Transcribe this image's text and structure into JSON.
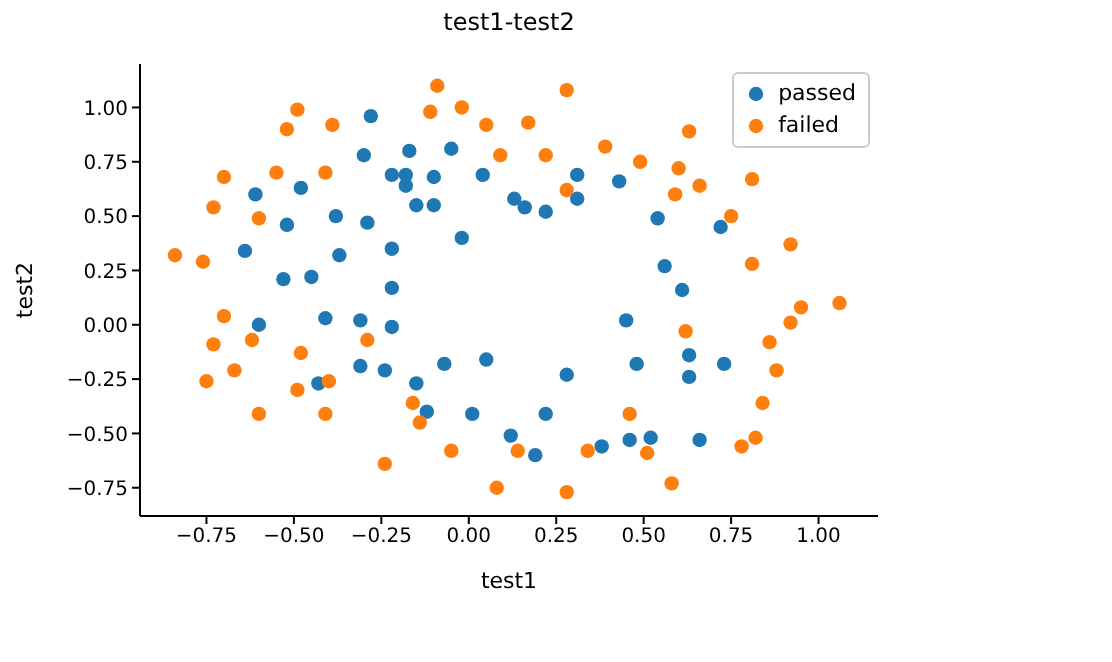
{
  "chart_data": {
    "type": "scatter",
    "title": "test1-test2",
    "xlabel": "test1",
    "ylabel": "test2",
    "xlim": [
      -0.94,
      1.17
    ],
    "ylim": [
      -0.88,
      1.2
    ],
    "xticks": [
      {
        "value": -0.75,
        "label": "−0.75"
      },
      {
        "value": -0.5,
        "label": "−0.50"
      },
      {
        "value": -0.25,
        "label": "−0.25"
      },
      {
        "value": 0,
        "label": "0.00"
      },
      {
        "value": 0.25,
        "label": "0.25"
      },
      {
        "value": 0.5,
        "label": "0.50"
      },
      {
        "value": 0.75,
        "label": "0.75"
      },
      {
        "value": 1,
        "label": "1.00"
      }
    ],
    "yticks": [
      {
        "value": -0.75,
        "label": "−0.75"
      },
      {
        "value": -0.5,
        "label": "−0.50"
      },
      {
        "value": -0.25,
        "label": "−0.25"
      },
      {
        "value": 0,
        "label": "0.00"
      },
      {
        "value": 0.25,
        "label": "0.25"
      },
      {
        "value": 0.5,
        "label": "0.50"
      },
      {
        "value": 0.75,
        "label": "0.75"
      },
      {
        "value": 1,
        "label": "1.00"
      }
    ],
    "legend": "top right",
    "marker": "circle",
    "series": [
      {
        "name": "passed",
        "color": "#1f77b4",
        "x": [
          -0.28,
          -0.3,
          -0.17,
          -0.05,
          -0.22,
          -0.18,
          -0.1,
          0.04,
          -0.18,
          -0.61,
          -0.48,
          -0.15,
          -0.1,
          -0.38,
          -0.52,
          -0.29,
          -0.02,
          -0.64,
          -0.37,
          -0.22,
          -0.53,
          -0.45,
          -0.22,
          0.31,
          0.43,
          0.13,
          0.16,
          0.22,
          0.31,
          0.54,
          0.72,
          0.56,
          0.61,
          -0.6,
          -0.41,
          -0.31,
          -0.22,
          -0.31,
          -0.24,
          -0.43,
          -0.15,
          -0.07,
          -0.12,
          0.01,
          0.45,
          0.05,
          0.28,
          0.48,
          0.63,
          0.63,
          0.73,
          0.22,
          0.12,
          0.19,
          0.38,
          0.46,
          0.52,
          0.66
        ],
        "values": [
          0.96,
          0.78,
          0.8,
          0.81,
          0.69,
          0.69,
          0.68,
          0.69,
          0.64,
          0.6,
          0.63,
          0.55,
          0.55,
          0.5,
          0.46,
          0.47,
          0.4,
          0.34,
          0.32,
          0.35,
          0.21,
          0.22,
          0.17,
          0.69,
          0.66,
          0.58,
          0.54,
          0.52,
          0.58,
          0.49,
          0.45,
          0.27,
          0.16,
          0.0,
          0.03,
          0.02,
          -0.01,
          -0.19,
          -0.21,
          -0.27,
          -0.27,
          -0.18,
          -0.4,
          -0.41,
          0.02,
          -0.16,
          -0.23,
          -0.18,
          -0.14,
          -0.24,
          -0.18,
          -0.41,
          -0.51,
          -0.6,
          -0.56,
          -0.53,
          -0.52,
          -0.53
        ]
      },
      {
        "name": "failed",
        "color": "#ff7f0e",
        "x": [
          -0.09,
          -0.49,
          -0.11,
          -0.02,
          -0.52,
          -0.39,
          0.05,
          -0.7,
          -0.55,
          -0.41,
          -0.73,
          -0.6,
          -0.84,
          -0.76,
          0.28,
          0.17,
          0.09,
          0.22,
          0.39,
          0.63,
          0.49,
          0.6,
          0.28,
          0.59,
          0.66,
          0.81,
          0.75,
          0.92,
          0.81,
          1.06,
          -0.7,
          -0.73,
          -0.62,
          -0.48,
          -0.75,
          -0.67,
          -0.49,
          -0.4,
          -0.6,
          -0.41,
          -0.29,
          -0.16,
          -0.14,
          -0.05,
          -0.24,
          0.62,
          0.86,
          0.92,
          0.95,
          0.88,
          0.84,
          0.46,
          0.82,
          0.78,
          0.14,
          0.34,
          0.51,
          0.08,
          0.28,
          0.58
        ],
        "values": [
          1.1,
          0.99,
          0.98,
          1.0,
          0.9,
          0.92,
          0.92,
          0.68,
          0.7,
          0.7,
          0.54,
          0.49,
          0.32,
          0.29,
          1.08,
          0.93,
          0.78,
          0.78,
          0.82,
          0.89,
          0.75,
          0.72,
          0.62,
          0.6,
          0.64,
          0.67,
          0.5,
          0.37,
          0.28,
          0.1,
          0.04,
          -0.09,
          -0.07,
          -0.13,
          -0.26,
          -0.21,
          -0.3,
          -0.26,
          -0.41,
          -0.41,
          -0.07,
          -0.36,
          -0.45,
          -0.58,
          -0.64,
          -0.03,
          -0.08,
          0.01,
          0.08,
          -0.21,
          -0.36,
          -0.41,
          -0.52,
          -0.56,
          -0.58,
          -0.58,
          -0.59,
          -0.75,
          -0.77,
          -0.73
        ]
      }
    ]
  }
}
